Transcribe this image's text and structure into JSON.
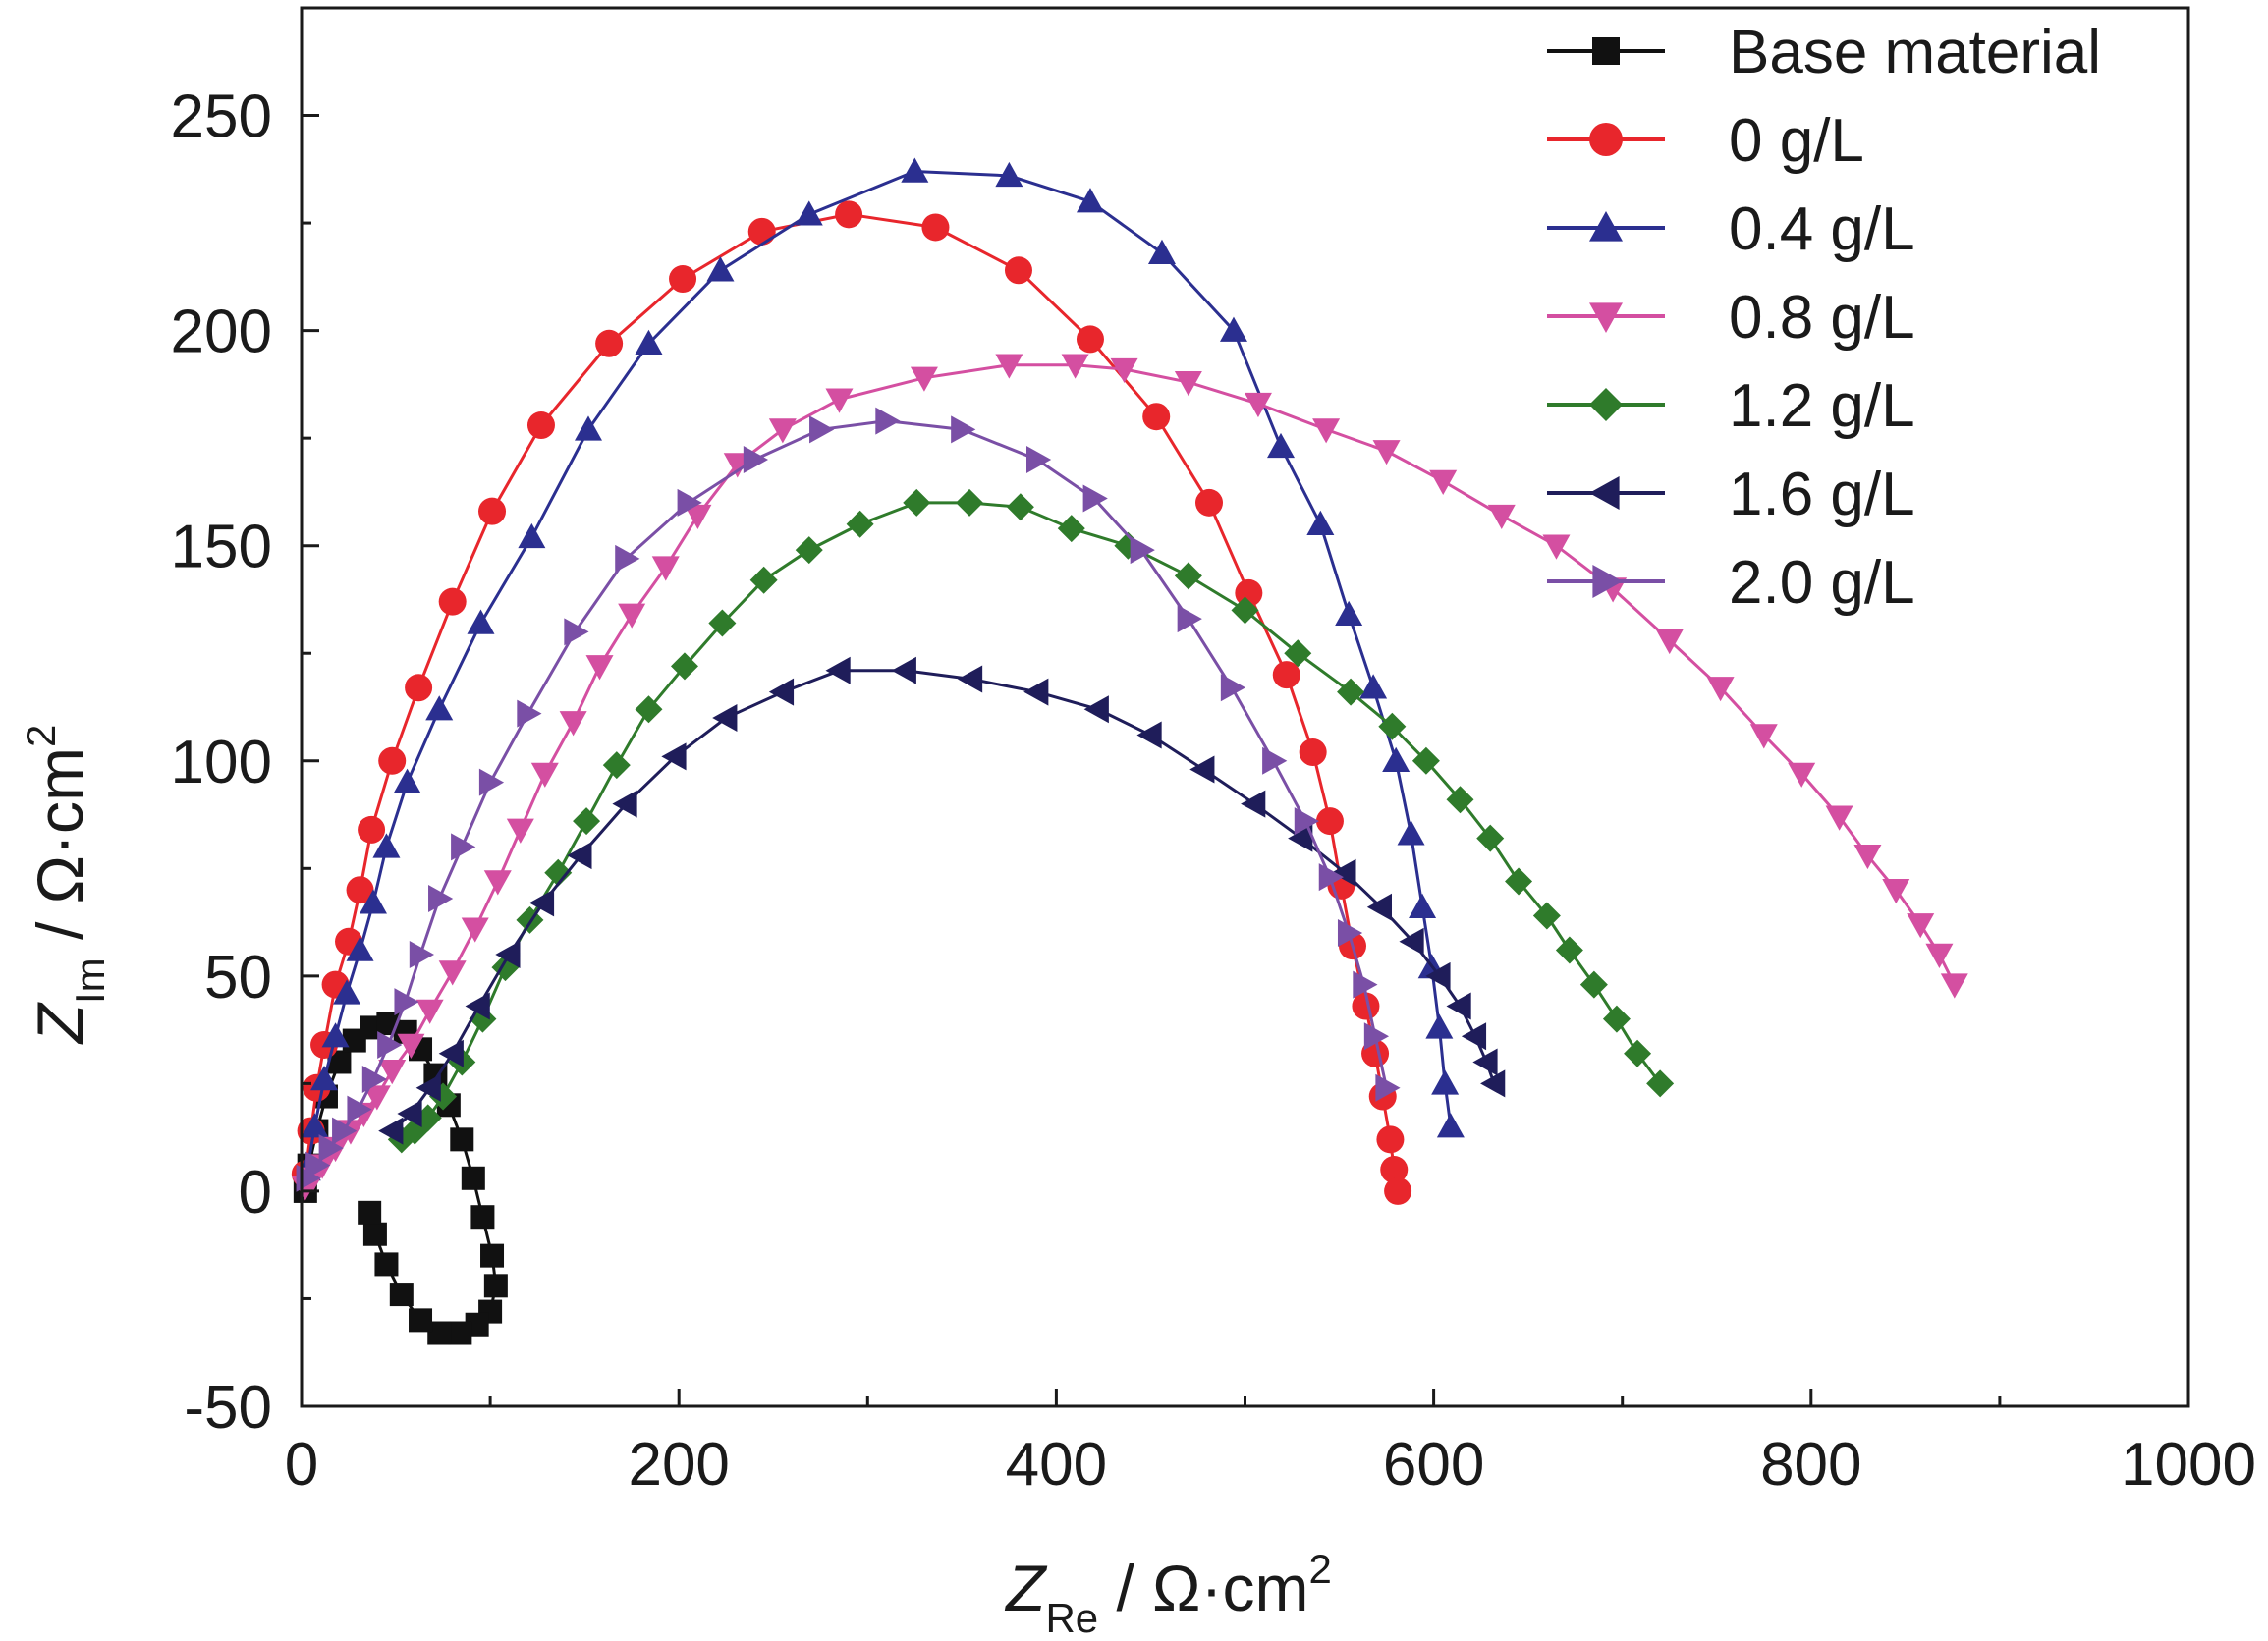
{
  "chart_data": {
    "type": "scatter",
    "title": "",
    "xlabel": {
      "var": "Z",
      "sub": "Re",
      "unit": " / Ω·cm",
      "sup": "2"
    },
    "ylabel": {
      "var": "Z",
      "sub": "Im",
      "unit": " / Ω·cm",
      "sup": "2"
    },
    "xlim": [
      0,
      1000
    ],
    "ylim": [
      -50,
      275
    ],
    "x_ticks": [
      0,
      200,
      400,
      600,
      800,
      1000
    ],
    "x_tick_labels": [
      "0",
      "200",
      "400",
      "600",
      "800",
      "1000"
    ],
    "y_ticks": [
      -50,
      0,
      50,
      100,
      150,
      200,
      250
    ],
    "y_tick_labels": [
      "-50",
      "0",
      "50",
      "100",
      "150",
      "200",
      "250"
    ],
    "grid": false,
    "legend_position": "top-right",
    "series": [
      {
        "name": "Base material",
        "color": "#111111",
        "marker": "square",
        "points": [
          [
            2,
            0
          ],
          [
            4,
            6
          ],
          [
            8,
            14
          ],
          [
            13,
            22
          ],
          [
            20,
            30
          ],
          [
            28,
            35
          ],
          [
            37,
            38
          ],
          [
            46,
            39
          ],
          [
            55,
            37
          ],
          [
            63,
            33
          ],
          [
            71,
            27
          ],
          [
            78,
            20
          ],
          [
            85,
            12
          ],
          [
            91,
            3
          ],
          [
            96,
            -6
          ],
          [
            101,
            -15
          ],
          [
            103,
            -22
          ],
          [
            100,
            -28
          ],
          [
            93,
            -31
          ],
          [
            84,
            -33
          ],
          [
            73,
            -33
          ],
          [
            63,
            -30
          ],
          [
            53,
            -24
          ],
          [
            45,
            -17
          ],
          [
            39,
            -10
          ],
          [
            36,
            -5
          ]
        ]
      },
      {
        "name": "0 g/L",
        "color": "#e8262c",
        "marker": "circle",
        "points": [
          [
            2,
            4
          ],
          [
            5,
            14
          ],
          [
            8,
            24
          ],
          [
            12,
            34
          ],
          [
            18,
            48
          ],
          [
            25,
            58
          ],
          [
            31,
            70
          ],
          [
            37,
            84
          ],
          [
            48,
            100
          ],
          [
            62,
            117
          ],
          [
            80,
            137
          ],
          [
            101,
            158
          ],
          [
            127,
            178
          ],
          [
            163,
            197
          ],
          [
            202,
            212
          ],
          [
            244,
            223
          ],
          [
            290,
            227
          ],
          [
            336,
            224
          ],
          [
            380,
            214
          ],
          [
            418,
            198
          ],
          [
            453,
            180
          ],
          [
            481,
            160
          ],
          [
            502,
            139
          ],
          [
            522,
            120
          ],
          [
            536,
            102
          ],
          [
            545,
            86
          ],
          [
            551,
            71
          ],
          [
            557,
            57
          ],
          [
            564,
            43
          ],
          [
            569,
            32
          ],
          [
            573,
            22
          ],
          [
            577,
            12
          ],
          [
            579,
            5
          ],
          [
            581,
            0
          ]
        ]
      },
      {
        "name": "0.4 g/L",
        "color": "#2b2f90",
        "marker": "triangle-up",
        "points": [
          [
            3,
            5
          ],
          [
            7,
            15
          ],
          [
            12,
            26
          ],
          [
            18,
            36
          ],
          [
            24,
            46
          ],
          [
            31,
            56
          ],
          [
            38,
            67
          ],
          [
            45,
            80
          ],
          [
            56,
            95
          ],
          [
            73,
            112
          ],
          [
            95,
            132
          ],
          [
            122,
            152
          ],
          [
            152,
            177
          ],
          [
            184,
            197
          ],
          [
            222,
            214
          ],
          [
            269,
            227
          ],
          [
            325,
            237
          ],
          [
            375,
            236
          ],
          [
            418,
            230
          ],
          [
            456,
            218
          ],
          [
            494,
            200
          ],
          [
            519,
            173
          ],
          [
            540,
            155
          ],
          [
            555,
            134
          ],
          [
            568,
            117
          ],
          [
            580,
            100
          ],
          [
            588,
            83
          ],
          [
            594,
            66
          ],
          [
            599,
            52
          ],
          [
            603,
            38
          ],
          [
            606,
            25
          ],
          [
            609,
            15
          ]
        ]
      },
      {
        "name": "0.8 g/L",
        "color": "#d44fa1",
        "marker": "triangle-down",
        "points": [
          [
            2,
            1
          ],
          [
            6,
            3
          ],
          [
            11,
            6
          ],
          [
            18,
            10
          ],
          [
            26,
            14
          ],
          [
            33,
            18
          ],
          [
            40,
            22
          ],
          [
            48,
            28
          ],
          [
            58,
            34
          ],
          [
            68,
            42
          ],
          [
            80,
            51
          ],
          [
            92,
            61
          ],
          [
            104,
            72
          ],
          [
            116,
            84
          ],
          [
            129,
            97
          ],
          [
            144,
            109
          ],
          [
            158,
            122
          ],
          [
            175,
            134
          ],
          [
            193,
            145
          ],
          [
            210,
            157
          ],
          [
            231,
            169
          ],
          [
            255,
            177
          ],
          [
            285,
            184
          ],
          [
            330,
            189
          ],
          [
            375,
            192
          ],
          [
            410,
            192
          ],
          [
            436,
            191
          ],
          [
            470,
            188
          ],
          [
            507,
            183
          ],
          [
            543,
            177
          ],
          [
            575,
            172
          ],
          [
            605,
            165
          ],
          [
            636,
            157
          ],
          [
            665,
            150
          ],
          [
            695,
            140
          ],
          [
            725,
            128
          ],
          [
            752,
            117
          ],
          [
            775,
            106
          ],
          [
            795,
            97
          ],
          [
            815,
            87
          ],
          [
            830,
            78
          ],
          [
            845,
            70
          ],
          [
            858,
            62
          ],
          [
            868,
            55
          ],
          [
            876,
            48
          ]
        ]
      },
      {
        "name": "1.2 g/L",
        "color": "#2f7b2b",
        "marker": "diamond",
        "points": [
          [
            53,
            12
          ],
          [
            60,
            14
          ],
          [
            67,
            17
          ],
          [
            75,
            22
          ],
          [
            85,
            30
          ],
          [
            96,
            40
          ],
          [
            108,
            52
          ],
          [
            121,
            63
          ],
          [
            136,
            74
          ],
          [
            151,
            86
          ],
          [
            167,
            99
          ],
          [
            184,
            112
          ],
          [
            203,
            122
          ],
          [
            223,
            132
          ],
          [
            245,
            142
          ],
          [
            269,
            149
          ],
          [
            296,
            155
          ],
          [
            326,
            160
          ],
          [
            354,
            160
          ],
          [
            381,
            159
          ],
          [
            408,
            154
          ],
          [
            438,
            150
          ],
          [
            470,
            143
          ],
          [
            500,
            135
          ],
          [
            528,
            125
          ],
          [
            556,
            116
          ],
          [
            578,
            108
          ],
          [
            596,
            100
          ],
          [
            614,
            91
          ],
          [
            630,
            82
          ],
          [
            645,
            72
          ],
          [
            660,
            64
          ],
          [
            672,
            56
          ],
          [
            685,
            48
          ],
          [
            697,
            40
          ],
          [
            708,
            32
          ],
          [
            720,
            25
          ]
        ]
      },
      {
        "name": "1.6 g/L",
        "color": "#1f1d5a",
        "marker": "triangle-left",
        "points": [
          [
            48,
            14
          ],
          [
            58,
            18
          ],
          [
            68,
            24
          ],
          [
            80,
            32
          ],
          [
            94,
            43
          ],
          [
            110,
            55
          ],
          [
            128,
            67
          ],
          [
            148,
            78
          ],
          [
            172,
            90
          ],
          [
            198,
            101
          ],
          [
            225,
            110
          ],
          [
            255,
            116
          ],
          [
            285,
            121
          ],
          [
            320,
            121
          ],
          [
            355,
            119
          ],
          [
            390,
            116
          ],
          [
            422,
            112
          ],
          [
            450,
            106
          ],
          [
            478,
            98
          ],
          [
            505,
            90
          ],
          [
            530,
            82
          ],
          [
            553,
            74
          ],
          [
            572,
            66
          ],
          [
            589,
            58
          ],
          [
            603,
            50
          ],
          [
            614,
            43
          ],
          [
            622,
            36
          ],
          [
            628,
            30
          ],
          [
            632,
            25
          ]
        ]
      },
      {
        "name": "2.0 g/L",
        "color": "#7a4fa6",
        "marker": "triangle-right",
        "points": [
          [
            3,
            3
          ],
          [
            8,
            6
          ],
          [
            15,
            10
          ],
          [
            22,
            14
          ],
          [
            30,
            19
          ],
          [
            38,
            26
          ],
          [
            46,
            34
          ],
          [
            55,
            44
          ],
          [
            63,
            55
          ],
          [
            73,
            68
          ],
          [
            85,
            80
          ],
          [
            100,
            95
          ],
          [
            120,
            111
          ],
          [
            145,
            130
          ],
          [
            172,
            147
          ],
          [
            205,
            160
          ],
          [
            240,
            170
          ],
          [
            275,
            177
          ],
          [
            310,
            179
          ],
          [
            350,
            177
          ],
          [
            390,
            170
          ],
          [
            420,
            161
          ],
          [
            445,
            149
          ],
          [
            470,
            133
          ],
          [
            493,
            117
          ],
          [
            515,
            100
          ],
          [
            532,
            86
          ],
          [
            545,
            73
          ],
          [
            555,
            60
          ],
          [
            563,
            48
          ],
          [
            569,
            36
          ],
          [
            575,
            24
          ]
        ]
      }
    ]
  }
}
